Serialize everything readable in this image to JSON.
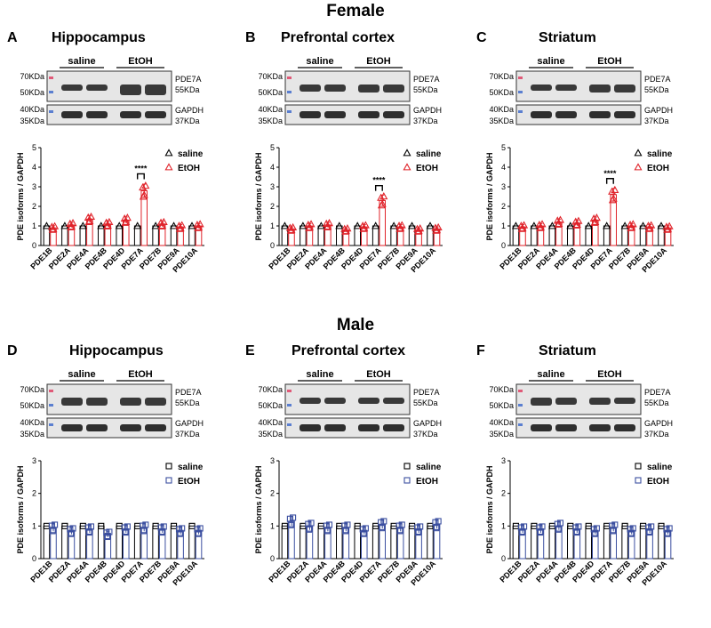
{
  "figure": {
    "female_title": "Female",
    "male_title": "Male"
  },
  "labels": {
    "group_header_saline": "saline",
    "group_header_etoh": "EtOH",
    "mw_70": "70KDa",
    "mw_50": "50KDa",
    "mw_40": "40KDa",
    "mw_35": "35KDa",
    "band_pde7a": "PDE7A",
    "band_55": "55KDa",
    "band_gapdh": "GAPDH",
    "band_37": "37KDa"
  },
  "colors": {
    "saline": "#000000",
    "etoh_female": "#e0232a",
    "etoh_male": "#3b4fa0",
    "blot_bg": "#e6e6e6",
    "band": "#1a1a1a"
  },
  "panels": [
    {
      "letter": "A",
      "title": "Hippocampus",
      "sex": "female",
      "marker": "triangle"
    },
    {
      "letter": "B",
      "title": "Prefrontal cortex",
      "sex": "female",
      "marker": "triangle"
    },
    {
      "letter": "C",
      "title": "Striatum",
      "sex": "female",
      "marker": "triangle"
    },
    {
      "letter": "D",
      "title": "Hippocampus",
      "sex": "male",
      "marker": "square"
    },
    {
      "letter": "E",
      "title": "Prefrontal cortex",
      "sex": "male",
      "marker": "square"
    },
    {
      "letter": "F",
      "title": "Striatum",
      "sex": "male",
      "marker": "square"
    }
  ],
  "chart_data": [
    {
      "type": "bar",
      "panel": "A",
      "categories": [
        "PDE1B",
        "PDE2A",
        "PDE4A",
        "PDE4B",
        "PDE4D",
        "PDE7A",
        "PDE7B",
        "PDE9A",
        "PDE10A"
      ],
      "ylabel": "PDE isoforms / GAPDH",
      "ylim": [
        0,
        5
      ],
      "yticks": [
        0,
        1,
        2,
        3,
        4,
        5
      ],
      "legend_position": "top-right",
      "series": [
        {
          "name": "saline",
          "values": [
            1,
            1,
            1,
            1,
            1,
            1,
            1,
            1,
            1
          ]
        },
        {
          "name": "EtOH",
          "values": [
            0.9,
            1.05,
            1.35,
            1.1,
            1.3,
            2.8,
            1.1,
            0.95,
            1.0
          ]
        }
      ],
      "significance": {
        "category": "PDE7A",
        "label": "****"
      }
    },
    {
      "type": "bar",
      "panel": "B",
      "categories": [
        "PDE1B",
        "PDE2A",
        "PDE4A",
        "PDE4B",
        "PDE4D",
        "PDE7A",
        "PDE7B",
        "PDE9A",
        "PDE10A"
      ],
      "ylabel": "PDE isoforms / GAPDH",
      "ylim": [
        0,
        5
      ],
      "yticks": [
        0,
        1,
        2,
        3,
        4,
        5
      ],
      "legend_position": "top-right",
      "series": [
        {
          "name": "saline",
          "values": [
            1,
            1,
            1,
            1,
            1,
            1,
            1,
            1,
            1
          ]
        },
        {
          "name": "EtOH",
          "values": [
            0.85,
            1.0,
            1.05,
            0.8,
            0.95,
            2.3,
            0.95,
            0.8,
            0.85
          ]
        }
      ],
      "significance": {
        "category": "PDE7A",
        "label": "****"
      }
    },
    {
      "type": "bar",
      "panel": "C",
      "categories": [
        "PDE1B",
        "PDE2A",
        "PDE4A",
        "PDE4B",
        "PDE4D",
        "PDE7A",
        "PDE7B",
        "PDE9A",
        "PDE10A"
      ],
      "ylabel": "PDE isoforms / GAPDH",
      "ylim": [
        0,
        5
      ],
      "yticks": [
        0,
        1,
        2,
        3,
        4,
        5
      ],
      "legend_position": "top-right",
      "series": [
        {
          "name": "saline",
          "values": [
            1,
            1,
            1,
            1,
            1,
            1,
            1,
            1,
            1
          ]
        },
        {
          "name": "EtOH",
          "values": [
            0.95,
            1.0,
            1.2,
            1.15,
            1.3,
            2.6,
            1.0,
            0.95,
            0.9
          ]
        }
      ],
      "significance": {
        "category": "PDE7A",
        "label": "****"
      }
    },
    {
      "type": "bar",
      "panel": "D",
      "categories": [
        "PDE1B",
        "PDE2A",
        "PDE4A",
        "PDE4B",
        "PDE4D",
        "PDE7A",
        "PDE7B",
        "PDE9A",
        "PDE10A"
      ],
      "ylabel": "PDE isoforms / GAPDH",
      "ylim": [
        0,
        3
      ],
      "yticks": [
        0,
        1,
        2,
        3
      ],
      "legend_position": "top-right",
      "series": [
        {
          "name": "saline",
          "values": [
            1,
            1,
            1,
            1,
            1,
            1,
            1,
            1,
            1
          ]
        },
        {
          "name": "EtOH",
          "values": [
            0.95,
            0.85,
            0.9,
            0.75,
            0.9,
            0.95,
            0.9,
            0.85,
            0.85
          ]
        }
      ]
    },
    {
      "type": "bar",
      "panel": "E",
      "categories": [
        "PDE1B",
        "PDE2A",
        "PDE4A",
        "PDE4B",
        "PDE4D",
        "PDE7A",
        "PDE7B",
        "PDE9A",
        "PDE10A"
      ],
      "ylabel": "PDE isoforms / GAPDH",
      "ylim": [
        0,
        3
      ],
      "yticks": [
        0,
        1,
        2,
        3
      ],
      "legend_position": "top-right",
      "series": [
        {
          "name": "saline",
          "values": [
            1,
            1,
            1,
            1,
            1,
            1,
            1,
            1,
            1
          ]
        },
        {
          "name": "EtOH",
          "values": [
            1.15,
            1.0,
            0.95,
            0.95,
            0.85,
            1.05,
            0.95,
            0.9,
            1.05
          ]
        }
      ]
    },
    {
      "type": "bar",
      "panel": "F",
      "categories": [
        "PDE1B",
        "PDE2A",
        "PDE4A",
        "PDE4B",
        "PDE4D",
        "PDE7A",
        "PDE7B",
        "PDE9A",
        "PDE10A"
      ],
      "ylabel": "PDE isoforms / GAPDH",
      "ylim": [
        0,
        3
      ],
      "yticks": [
        0,
        1,
        2,
        3
      ],
      "legend_position": "top-right",
      "series": [
        {
          "name": "saline",
          "values": [
            1,
            1,
            1,
            1,
            1,
            1,
            1,
            1,
            1
          ]
        },
        {
          "name": "EtOH",
          "values": [
            0.9,
            0.9,
            1.0,
            0.9,
            0.85,
            0.95,
            0.85,
            0.9,
            0.85
          ]
        }
      ]
    }
  ]
}
